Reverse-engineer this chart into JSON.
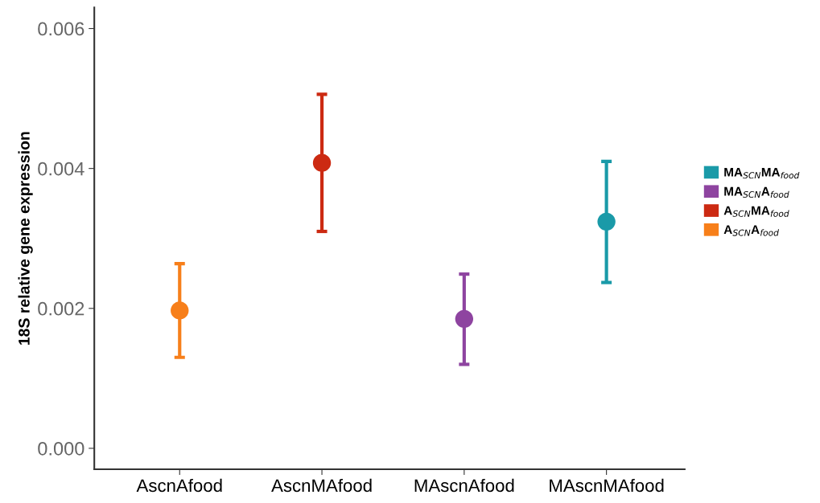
{
  "chart_data": {
    "type": "scatter",
    "ylabel": "18S relative gene expression",
    "categories": [
      "AscnAfood",
      "AscnMAfood",
      "MAscnAfood",
      "MAscnMAfood"
    ],
    "series": [
      {
        "name": "A$_{SCN}$A$_{food}$",
        "color": "#f77f1a",
        "values": [
          0.00197,
          null,
          null,
          null
        ],
        "errors": [
          [
            0.0013,
            0.00264
          ],
          null,
          null,
          null
        ]
      },
      {
        "name": "A$_{SCN}$MA$_{food}$",
        "color": "#cc2a12",
        "values": [
          null,
          0.00408,
          null,
          null
        ],
        "errors": [
          null,
          [
            0.0031,
            0.00506
          ],
          null,
          null
        ]
      },
      {
        "name": "MA$_{SCN}$A$_{food}$",
        "color": "#8e44a0",
        "values": [
          null,
          null,
          0.00185,
          null
        ],
        "errors": [
          null,
          null,
          [
            0.0012,
            0.00249
          ],
          null
        ]
      },
      {
        "name": "MA$_{SCN}$MA$_{food}$",
        "color": "#1a9aa8",
        "values": [
          null,
          null,
          null,
          0.00324
        ],
        "errors": [
          null,
          null,
          null,
          [
            0.00237,
            0.0041
          ]
        ]
      }
    ],
    "ylim": [
      -0.0003,
      0.0063
    ],
    "yticks": [
      {
        "value": 0,
        "label": "0.000"
      },
      {
        "value": 0.002,
        "label": "0.002"
      },
      {
        "value": 0.004,
        "label": "0.004"
      },
      {
        "value": 0.006,
        "label": "0.006"
      }
    ],
    "marker": "circle",
    "grid": false,
    "legend": "right"
  }
}
